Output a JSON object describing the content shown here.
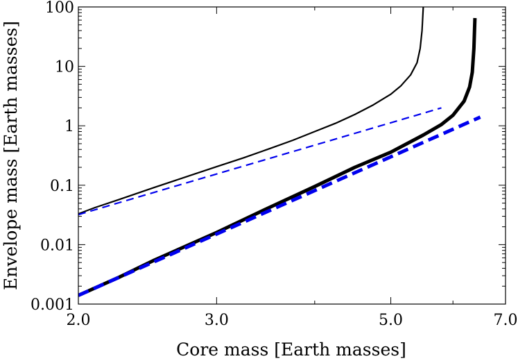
{
  "chart_data": {
    "type": "line",
    "xlabel": "Core mass [Earth masses]",
    "ylabel": "Envelope mass [Earth masses]",
    "x_scale": "log",
    "y_scale": "log",
    "xlim": [
      2.0,
      7.0
    ],
    "ylim": [
      0.001,
      100
    ],
    "x_ticks": [
      {
        "value": 2.0,
        "label": "2.0"
      },
      {
        "value": 3.0,
        "label": "3.0"
      },
      {
        "value": 5.0,
        "label": "5.0"
      },
      {
        "value": 7.0,
        "label": "7.0"
      }
    ],
    "x_minor_ticks": [
      4.0,
      6.0
    ],
    "y_ticks": [
      {
        "value": 0.001,
        "label": "0.001"
      },
      {
        "value": 0.01,
        "label": "0.01"
      },
      {
        "value": 0.1,
        "label": "0.1"
      },
      {
        "value": 1,
        "label": "1"
      },
      {
        "value": 10,
        "label": "10"
      },
      {
        "value": 100,
        "label": "100"
      }
    ],
    "grid": false,
    "legend": "none",
    "series": [
      {
        "style": "solid-thin",
        "color": "#000000",
        "points": [
          [
            2.0,
            0.033
          ],
          [
            2.1,
            0.042
          ],
          [
            2.25,
            0.057
          ],
          [
            2.5,
            0.092
          ],
          [
            2.75,
            0.14
          ],
          [
            3.0,
            0.205
          ],
          [
            3.25,
            0.29
          ],
          [
            3.5,
            0.41
          ],
          [
            3.75,
            0.57
          ],
          [
            4.0,
            0.8
          ],
          [
            4.25,
            1.1
          ],
          [
            4.5,
            1.55
          ],
          [
            4.75,
            2.25
          ],
          [
            5.0,
            3.4
          ],
          [
            5.15,
            4.7
          ],
          [
            5.3,
            7.2
          ],
          [
            5.4,
            11.5
          ],
          [
            5.45,
            20
          ],
          [
            5.48,
            40
          ],
          [
            5.5,
            100
          ]
        ]
      },
      {
        "style": "dashed-thin",
        "color": "#0000ee",
        "points": [
          [
            2.0,
            0.032
          ],
          [
            5.8,
            2.0
          ]
        ]
      },
      {
        "style": "solid-thick",
        "color": "#000000",
        "points": [
          [
            2.0,
            0.0014
          ],
          [
            2.25,
            0.0028
          ],
          [
            2.5,
            0.0055
          ],
          [
            3.0,
            0.016
          ],
          [
            3.5,
            0.042
          ],
          [
            4.0,
            0.095
          ],
          [
            4.5,
            0.2
          ],
          [
            5.0,
            0.36
          ],
          [
            5.5,
            0.7
          ],
          [
            5.8,
            1.05
          ],
          [
            6.0,
            1.5
          ],
          [
            6.2,
            2.6
          ],
          [
            6.3,
            4.5
          ],
          [
            6.35,
            8
          ],
          [
            6.38,
            20
          ],
          [
            6.4,
            65
          ]
        ]
      },
      {
        "style": "dashed-thick",
        "color": "#0000ee",
        "points": [
          [
            2.0,
            0.0014
          ],
          [
            6.5,
            1.4
          ]
        ]
      }
    ]
  }
}
